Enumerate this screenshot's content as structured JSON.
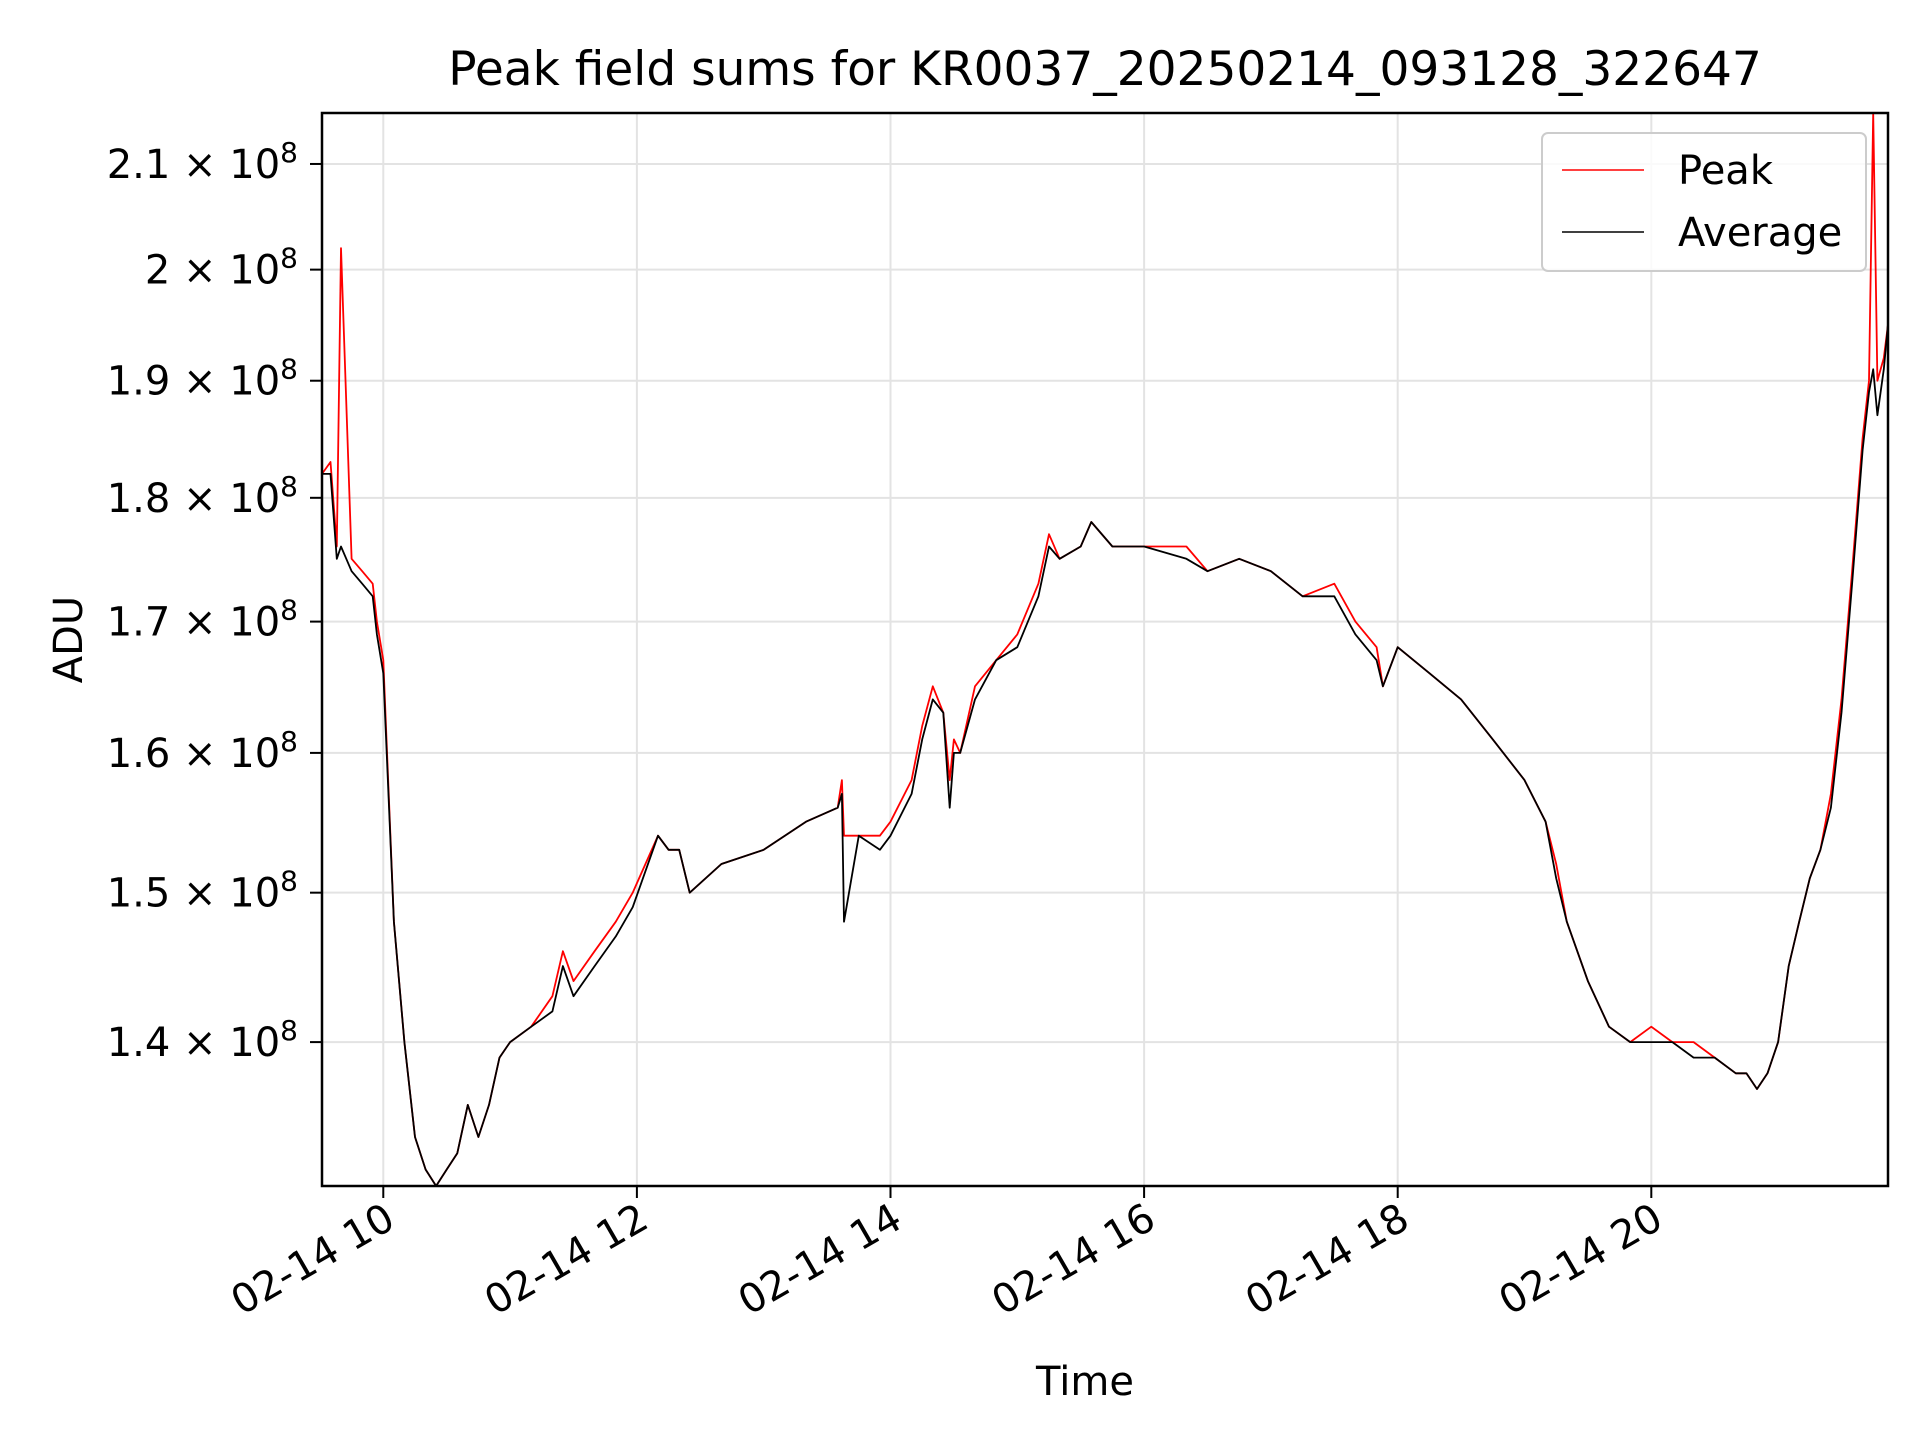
{
  "chart_data": {
    "type": "line",
    "title": "Peak field sums for KR0037_20250214_093128_322647",
    "xlabel": "Time",
    "ylabel": "ADU",
    "x_range": [
      "2025-02-14 09:31",
      "2025-02-14 21:52"
    ],
    "y_scale": "log",
    "y_range": [
      131000000,
      215000000
    ],
    "grid": true,
    "legend_position": "upper right",
    "x_ticks": [
      {
        "value": "2025-02-14 10:00",
        "label": "02-14 10"
      },
      {
        "value": "2025-02-14 12:00",
        "label": "02-14 12"
      },
      {
        "value": "2025-02-14 14:00",
        "label": "02-14 14"
      },
      {
        "value": "2025-02-14 16:00",
        "label": "02-14 16"
      },
      {
        "value": "2025-02-14 18:00",
        "label": "02-14 18"
      },
      {
        "value": "2025-02-14 20:00",
        "label": "02-14 20"
      }
    ],
    "y_ticks": [
      {
        "value": 140000000,
        "mantissa": "1.4",
        "exponent": "8"
      },
      {
        "value": 150000000,
        "mantissa": "1.5",
        "exponent": "8"
      },
      {
        "value": 160000000,
        "mantissa": "1.6",
        "exponent": "8"
      },
      {
        "value": 170000000,
        "mantissa": "1.7",
        "exponent": "8"
      },
      {
        "value": 180000000,
        "mantissa": "1.8",
        "exponent": "8"
      },
      {
        "value": 190000000,
        "mantissa": "1.9",
        "exponent": "8"
      },
      {
        "value": 200000000,
        "mantissa": "2",
        "exponent": "8"
      },
      {
        "value": 210000000,
        "mantissa": "2.1",
        "exponent": "8"
      }
    ],
    "times": [
      "2025-02-14 09:31",
      "2025-02-14 09:35",
      "2025-02-14 09:38",
      "2025-02-14 09:40",
      "2025-02-14 09:45",
      "2025-02-14 09:50",
      "2025-02-14 09:55",
      "2025-02-14 09:57",
      "2025-02-14 10:00",
      "2025-02-14 10:05",
      "2025-02-14 10:10",
      "2025-02-14 10:15",
      "2025-02-14 10:20",
      "2025-02-14 10:25",
      "2025-02-14 10:30",
      "2025-02-14 10:35",
      "2025-02-14 10:40",
      "2025-02-14 10:45",
      "2025-02-14 10:50",
      "2025-02-14 10:55",
      "2025-02-14 11:00",
      "2025-02-14 11:10",
      "2025-02-14 11:20",
      "2025-02-14 11:25",
      "2025-02-14 11:30",
      "2025-02-14 11:40",
      "2025-02-14 11:50",
      "2025-02-14 11:58",
      "2025-02-14 12:10",
      "2025-02-14 12:15",
      "2025-02-14 12:20",
      "2025-02-14 12:25",
      "2025-02-14 12:40",
      "2025-02-14 13:00",
      "2025-02-14 13:20",
      "2025-02-14 13:35",
      "2025-02-14 13:37",
      "2025-02-14 13:38",
      "2025-02-14 13:45",
      "2025-02-14 13:55",
      "2025-02-14 14:00",
      "2025-02-14 14:10",
      "2025-02-14 14:15",
      "2025-02-14 14:20",
      "2025-02-14 14:25",
      "2025-02-14 14:28",
      "2025-02-14 14:30",
      "2025-02-14 14:33",
      "2025-02-14 14:40",
      "2025-02-14 14:50",
      "2025-02-14 15:00",
      "2025-02-14 15:10",
      "2025-02-14 15:15",
      "2025-02-14 15:20",
      "2025-02-14 15:30",
      "2025-02-14 15:35",
      "2025-02-14 15:45",
      "2025-02-14 16:00",
      "2025-02-14 16:20",
      "2025-02-14 16:30",
      "2025-02-14 16:45",
      "2025-02-14 17:00",
      "2025-02-14 17:15",
      "2025-02-14 17:30",
      "2025-02-14 17:40",
      "2025-02-14 17:50",
      "2025-02-14 17:53",
      "2025-02-14 18:00",
      "2025-02-14 18:15",
      "2025-02-14 18:30",
      "2025-02-14 18:45",
      "2025-02-14 19:00",
      "2025-02-14 19:10",
      "2025-02-14 19:15",
      "2025-02-14 19:20",
      "2025-02-14 19:30",
      "2025-02-14 19:40",
      "2025-02-14 19:50",
      "2025-02-14 20:00",
      "2025-02-14 20:10",
      "2025-02-14 20:20",
      "2025-02-14 20:30",
      "2025-02-14 20:40",
      "2025-02-14 20:45",
      "2025-02-14 20:50",
      "2025-02-14 20:55",
      "2025-02-14 21:00",
      "2025-02-14 21:05",
      "2025-02-14 21:10",
      "2025-02-14 21:15",
      "2025-02-14 21:20",
      "2025-02-14 21:25",
      "2025-02-14 21:30",
      "2025-02-14 21:35",
      "2025-02-14 21:40",
      "2025-02-14 21:43",
      "2025-02-14 21:45",
      "2025-02-14 21:47",
      "2025-02-14 21:50",
      "2025-02-14 21:52"
    ],
    "series": [
      {
        "name": "Peak",
        "color": "#ff0000",
        "values": [
          182000000,
          183000000,
          176000000,
          202000000,
          175000000,
          174000000,
          173000000,
          170000000,
          167000000,
          148000000,
          140000000,
          134000000,
          132000000,
          131000000,
          132000000,
          133000000,
          136000000,
          134000000,
          136000000,
          139000000,
          140000000,
          141000000,
          143000000,
          146000000,
          144000000,
          146000000,
          148000000,
          150000000,
          154000000,
          153000000,
          153000000,
          150000000,
          152000000,
          153000000,
          155000000,
          156000000,
          158000000,
          154000000,
          154000000,
          154000000,
          155000000,
          158000000,
          162000000,
          165000000,
          163000000,
          158000000,
          161000000,
          160000000,
          165000000,
          167000000,
          169000000,
          173000000,
          177000000,
          175000000,
          176000000,
          178000000,
          176000000,
          176000000,
          176000000,
          174000000,
          175000000,
          174000000,
          172000000,
          173000000,
          170000000,
          168000000,
          165000000,
          168000000,
          166000000,
          164000000,
          161000000,
          158000000,
          155000000,
          152000000,
          148000000,
          144000000,
          141000000,
          140000000,
          141000000,
          140000000,
          140000000,
          139000000,
          138000000,
          138000000,
          137000000,
          138000000,
          140000000,
          145000000,
          148000000,
          151000000,
          153000000,
          157000000,
          164000000,
          174000000,
          185000000,
          190000000,
          215000000,
          190000000,
          192000000,
          195000000
        ]
      },
      {
        "name": "Average",
        "color": "#000000",
        "values": [
          182000000,
          182000000,
          175000000,
          176000000,
          174000000,
          173000000,
          172000000,
          169000000,
          166000000,
          148000000,
          140000000,
          134000000,
          132000000,
          131000000,
          132000000,
          133000000,
          136000000,
          134000000,
          136000000,
          139000000,
          140000000,
          141000000,
          142000000,
          145000000,
          143000000,
          145000000,
          147000000,
          149000000,
          154000000,
          153000000,
          153000000,
          150000000,
          152000000,
          153000000,
          155000000,
          156000000,
          157000000,
          148000000,
          154000000,
          153000000,
          154000000,
          157000000,
          161000000,
          164000000,
          163000000,
          156000000,
          160000000,
          160000000,
          164000000,
          167000000,
          168000000,
          172000000,
          176000000,
          175000000,
          176000000,
          178000000,
          176000000,
          176000000,
          175000000,
          174000000,
          175000000,
          174000000,
          172000000,
          172000000,
          169000000,
          167000000,
          165000000,
          168000000,
          166000000,
          164000000,
          161000000,
          158000000,
          155000000,
          151000000,
          148000000,
          144000000,
          141000000,
          140000000,
          140000000,
          140000000,
          139000000,
          139000000,
          138000000,
          138000000,
          137000000,
          138000000,
          140000000,
          145000000,
          148000000,
          151000000,
          153000000,
          156000000,
          163000000,
          173000000,
          184000000,
          189000000,
          191000000,
          187000000,
          191000000,
          195000000
        ]
      }
    ]
  }
}
